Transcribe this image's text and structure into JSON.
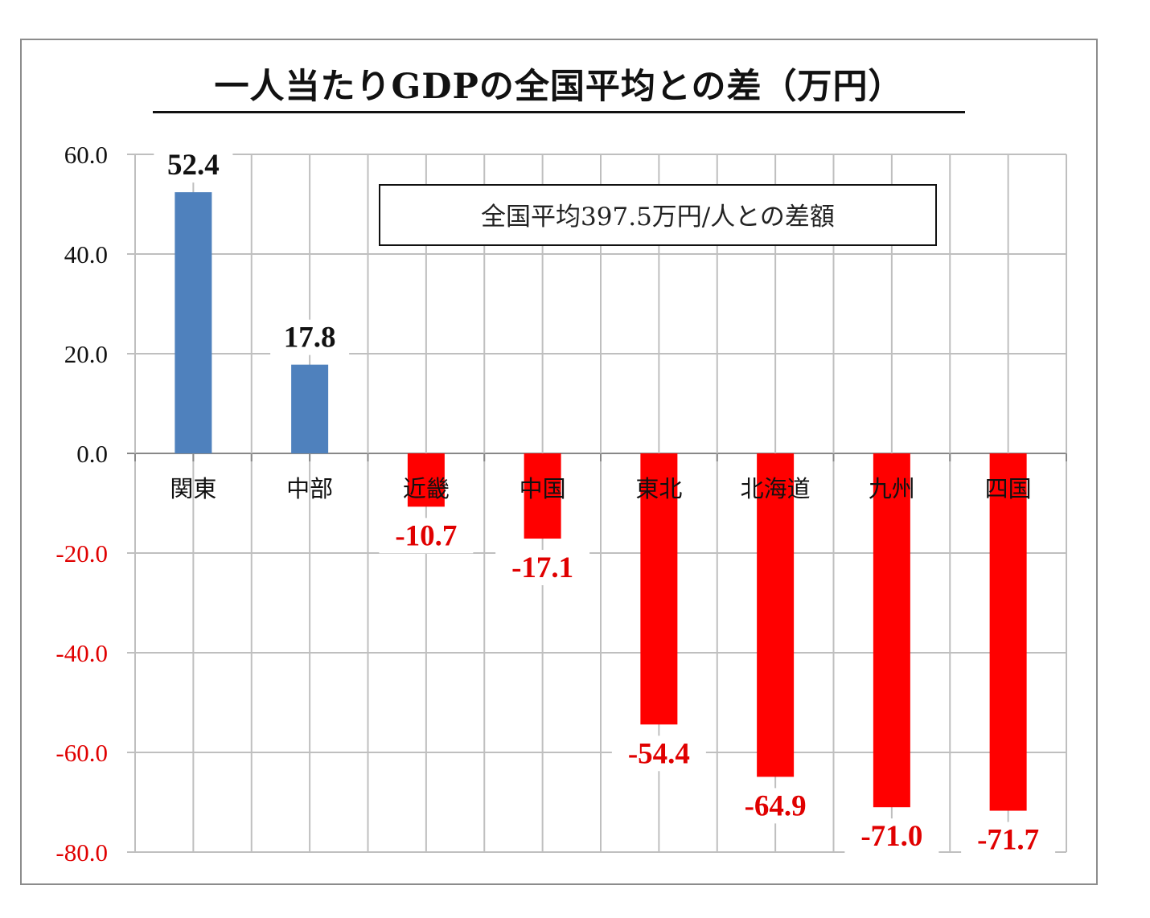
{
  "chart_data": {
    "type": "bar",
    "title": "一人当たりGDPの全国平均との差（万円）",
    "annotation": "全国平均397.5万円/人との差額",
    "categories": [
      "関東",
      "中部",
      "近畿",
      "中国",
      "東北",
      "北海道",
      "九州",
      "四国"
    ],
    "values": [
      52.4,
      17.8,
      -10.7,
      -17.1,
      -54.4,
      -64.9,
      -71.0,
      -71.7
    ],
    "value_labels": [
      "52.4",
      "17.8",
      "-10.7",
      "-17.1",
      "-54.4",
      "-64.9",
      "-71.0",
      "-71.7"
    ],
    "ylim": [
      -80,
      60
    ],
    "yticks": [
      "60.0",
      "40.0",
      "20.0",
      "0.0",
      "-20.0",
      "-40.0",
      "-60.0",
      "-80.0"
    ],
    "ytick_values": [
      60,
      40,
      20,
      0,
      -20,
      -40,
      -60,
      -80
    ],
    "grid": true,
    "colors": {
      "positive": "#4f81bd",
      "negative": "#ff0000",
      "negative_text": "#e00000",
      "positive_text": "#111111",
      "grid": "#bfbfbf"
    }
  }
}
